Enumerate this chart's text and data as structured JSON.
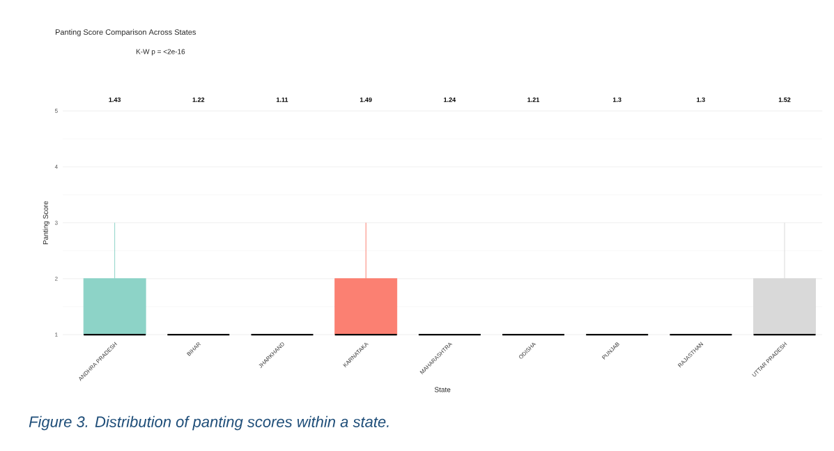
{
  "chart_data": {
    "type": "box",
    "title": "Panting Score Comparison Across States",
    "xlabel": "State",
    "ylabel": "Panting Score",
    "categories": [
      "ANDHRA PRADESH",
      "BIHAR",
      "JHARKHAND",
      "KARNATAKA",
      "MAHARASHTRA",
      "ODISHA",
      "PUNJAB",
      "RAJASTHAN",
      "UTTAR PRADESH"
    ],
    "boxes": [
      {
        "low": 1,
        "q1": 1,
        "median": 1,
        "q3": 2,
        "high": 3
      },
      {
        "low": 1,
        "q1": 1,
        "median": 1,
        "q3": 1,
        "high": 1
      },
      {
        "low": 1,
        "q1": 1,
        "median": 1,
        "q3": 1,
        "high": 1
      },
      {
        "low": 1,
        "q1": 1,
        "median": 1,
        "q3": 2,
        "high": 3
      },
      {
        "low": 1,
        "q1": 1,
        "median": 1,
        "q3": 1,
        "high": 1
      },
      {
        "low": 1,
        "q1": 1,
        "median": 1,
        "q3": 1,
        "high": 1
      },
      {
        "low": 1,
        "q1": 1,
        "median": 1,
        "q3": 1,
        "high": 1
      },
      {
        "low": 1,
        "q1": 1,
        "median": 1,
        "q3": 1,
        "high": 1
      },
      {
        "low": 1,
        "q1": 1,
        "median": 1,
        "q3": 2,
        "high": 3
      }
    ],
    "colors": [
      "#8dd3c7",
      "#ffffb3",
      "#bebada",
      "#fb8072",
      "#80b1d3",
      "#fdb462",
      "#b3de69",
      "#fccde5",
      "#d9d9d9"
    ],
    "ylim": [
      1,
      5
    ],
    "yticks": [
      1,
      2,
      3,
      4,
      5
    ],
    "grid": "y",
    "annotations": [
      "K-W p = <2e-16",
      "1.43",
      "1.22",
      "1.11",
      "1.49",
      "1.24",
      "1.21",
      "1.3",
      "1.3",
      "1.52",
      "Figure 3. Distribution of panting scores within a state."
    ]
  }
}
